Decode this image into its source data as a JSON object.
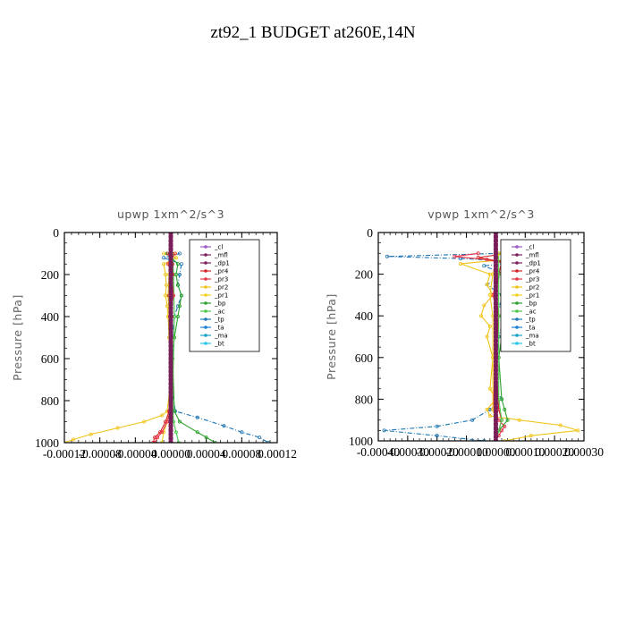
{
  "figure": {
    "title": "zt92_1  BUDGET at260E,14N"
  },
  "legend_names": [
    "_cl",
    "_mfl",
    "_dp1",
    "_pr4",
    "_pr3",
    "_pr2",
    "_pr1",
    "_bp",
    "_ac",
    "_tp",
    "_ta",
    "_ma",
    "_bt"
  ],
  "colors": {
    "_cl": "#9b59c6",
    "_mfl": "#7a1e5a",
    "_dp1": "#7a1e5a",
    "_pr4": "#d62728",
    "_pr3": "#e8344a",
    "_pr2": "#f0c419",
    "_pr1": "#f5d020",
    "_bp": "#2ca02c",
    "_ac": "#4cc94c",
    "_tp": "#1f77b4",
    "_ta": "#1a7fd1",
    "_ma": "#17a2c8",
    "_bt": "#22c7e8"
  },
  "chart_data": [
    {
      "type": "line",
      "title": "upwp   1xm^2/s^3",
      "ylabel": "Pressure [hPa]",
      "xlabel": "",
      "ylim": [
        1000,
        0
      ],
      "xlim": [
        -0.00012,
        0.00012
      ],
      "y_ticks": [
        "0",
        "200",
        "400",
        "600",
        "800",
        "1000"
      ],
      "x_ticks": [
        "-0.00012",
        "-0.00008",
        "-0.00004",
        "0.00000",
        "0.00004",
        "0.00008",
        "0.00012"
      ],
      "legend": [
        "_cl",
        "_mfl",
        "_dp1",
        "_pr4",
        "_pr3",
        "_pr2",
        "_pr1",
        "_bp",
        "_ac",
        "_tp",
        "_ta",
        "_ma",
        "_bt"
      ],
      "legend_position": "top-right",
      "series": [
        {
          "name": "_tp",
          "p": [
            100,
            120,
            150,
            200,
            250,
            300,
            350,
            400,
            500,
            700,
            850,
            880,
            920,
            950,
            975,
            1000
          ],
          "x": [
            1e-05,
            -8e-06,
            1.2e-05,
            1e-05,
            8e-06,
            1.2e-05,
            8e-06,
            4e-06,
            2e-06,
            0,
            5e-06,
            3e-05,
            6e-05,
            8e-05,
            0.0001,
            0.00011
          ]
        },
        {
          "name": "_pr2",
          "p": [
            100,
            120,
            150,
            200,
            250,
            300,
            350,
            400,
            500,
            700,
            850,
            870,
            900,
            930,
            960,
            985,
            1000
          ],
          "x": [
            -8e-06,
            6e-06,
            -8e-06,
            -6e-06,
            -5e-06,
            -6e-06,
            -4e-06,
            -3e-06,
            -2e-06,
            0,
            -4e-06,
            -1e-05,
            -3e-05,
            -6e-05,
            -9e-05,
            -0.00011,
            -0.00012
          ]
        },
        {
          "name": "_pr1",
          "p": [
            100,
            150,
            200,
            300,
            400,
            600,
            850,
            900,
            950,
            1000
          ],
          "x": [
            4e-06,
            -2e-06,
            -2e-06,
            -3e-06,
            -2e-06,
            0,
            -2e-06,
            -4e-06,
            -8e-06,
            -1e-05
          ]
        },
        {
          "name": "_bp",
          "p": [
            100,
            150,
            200,
            250,
            300,
            350,
            400,
            500,
            600,
            850,
            900,
            950,
            975,
            1000
          ],
          "x": [
            -4e-06,
            8e-06,
            6e-06,
            8e-06,
            1.2e-05,
            1e-05,
            8e-06,
            4e-06,
            2e-06,
            4e-06,
            1e-05,
            3e-05,
            4e-05,
            5e-05
          ]
        },
        {
          "name": "_ac",
          "p": [
            100,
            200,
            400,
            800,
            900,
            950,
            1000
          ],
          "x": [
            2e-06,
            3e-06,
            4e-06,
            2e-06,
            3e-06,
            6e-06,
            9e-06
          ]
        },
        {
          "name": "_pr4",
          "p": [
            100,
            150,
            200,
            300,
            400,
            600,
            850,
            900,
            950,
            975,
            1000
          ],
          "x": [
            -3e-06,
            2e-06,
            2e-06,
            -2e-06,
            1e-06,
            0,
            -2e-06,
            -6e-06,
            -1.2e-05,
            -1.8e-05,
            -2e-05
          ]
        },
        {
          "name": "_pr3",
          "p": [
            100,
            150,
            200,
            300,
            400,
            600,
            850,
            900,
            950,
            975,
            1000
          ],
          "x": [
            5e-06,
            -3e-06,
            1e-06,
            3e-06,
            -1e-06,
            0,
            -1e-06,
            -4e-06,
            -1e-05,
            -1.5e-05,
            -1.8e-05
          ]
        },
        {
          "name": "_cl",
          "p": [
            0,
            1000
          ],
          "x": [
            0,
            0
          ]
        },
        {
          "name": "_mfl",
          "p": [
            0,
            1000
          ],
          "x": [
            0,
            0
          ]
        }
      ]
    },
    {
      "type": "line",
      "title": "vpwp   1xm^2/s^3",
      "ylabel": "Pressure [hPa]",
      "xlabel": "",
      "ylim": [
        1000,
        0
      ],
      "xlim": [
        -0.0004,
        0.0003
      ],
      "y_ticks": [
        "0",
        "200",
        "400",
        "600",
        "800",
        "1000"
      ],
      "x_ticks": [
        "-0.00040",
        "-0.00030",
        "-0.00020",
        "-0.00010",
        "0.00000",
        "0.00010",
        "0.00020",
        "0.00030"
      ],
      "legend": [
        "_cl",
        "_mfl",
        "_dp1",
        "_pr4",
        "_pr3",
        "_pr2",
        "_pr1",
        "_bp",
        "_ac",
        "_tp",
        "_ta",
        "_ma",
        "_bt"
      ],
      "legend_position": "top-right",
      "series": [
        {
          "name": "_tp",
          "p": [
            100,
            115,
            125,
            140,
            160,
            200,
            250,
            300,
            350,
            400,
            500,
            600,
            750,
            800,
            850,
            900,
            930,
            950,
            975,
            1000
          ],
          "x": [
            2e-05,
            -0.00037,
            -0.00012,
            8e-05,
            -4e-05,
            3e-05,
            -3e-05,
            2e-05,
            1.5e-05,
            3e-05,
            1e-05,
            5e-06,
            0,
            2e-05,
            -2e-05,
            -8e-05,
            -0.0002,
            -0.00038,
            -0.0002,
            -4e-05
          ]
        },
        {
          "name": "_pr2",
          "p": [
            100,
            115,
            130,
            150,
            200,
            250,
            300,
            350,
            400,
            450,
            500,
            600,
            750,
            800,
            850,
            880,
            900,
            925,
            950,
            975,
            1000
          ],
          "x": [
            8e-05,
            0.0002,
            3e-05,
            -0.00012,
            -2e-05,
            -3e-05,
            -1e-05,
            -4e-05,
            -5e-05,
            -2e-05,
            -3e-05,
            -1e-05,
            -2e-05,
            0,
            -3e-05,
            -2e-05,
            8e-05,
            0.00022,
            0.00028,
            0.00012,
            3e-05
          ]
        },
        {
          "name": "_pr3",
          "p": [
            100,
            115,
            130,
            150,
            200,
            300,
            400,
            600,
            850,
            900,
            930,
            950,
            975,
            1000
          ],
          "x": [
            -6e-05,
            -0.00014,
            -3e-05,
            4e-05,
            1e-05,
            -1e-05,
            1e-05,
            0,
            -1e-05,
            1e-05,
            3e-05,
            2e-05,
            1e-05,
            0
          ]
        },
        {
          "name": "_pr4",
          "p": [
            100,
            120,
            140,
            200,
            300,
            400,
            600,
            850,
            900,
            950,
            1000
          ],
          "x": [
            4e-05,
            -6e-05,
            2e-05,
            1e-05,
            0,
            1e-05,
            0,
            1e-05,
            2e-05,
            1e-05,
            0
          ]
        },
        {
          "name": "_bp",
          "p": [
            100,
            120,
            150,
            200,
            250,
            300,
            350,
            400,
            500,
            600,
            800,
            850,
            900,
            950,
            1000
          ],
          "x": [
            2e-05,
            0.00016,
            8e-05,
            4e-05,
            3e-05,
            2e-05,
            4e-05,
            3e-05,
            2e-05,
            1e-05,
            2e-05,
            3e-05,
            4e-05,
            1e-05,
            0
          ]
        },
        {
          "name": "_ac",
          "p": [
            100,
            200,
            400,
            800,
            900,
            950,
            1000
          ],
          "x": [
            1e-05,
            1e-05,
            1e-05,
            1e-05,
            2e-05,
            1e-05,
            0
          ]
        },
        {
          "name": "_pr1",
          "p": [
            100,
            200,
            300,
            400,
            600,
            850,
            900,
            1000
          ],
          "x": [
            1e-05,
            -1e-05,
            -2e-05,
            -1e-05,
            -1e-05,
            -1e-05,
            0,
            0
          ]
        },
        {
          "name": "_cl",
          "p": [
            0,
            1000
          ],
          "x": [
            0,
            0
          ]
        },
        {
          "name": "_mfl",
          "p": [
            0,
            1000
          ],
          "x": [
            0,
            0
          ]
        }
      ]
    }
  ]
}
